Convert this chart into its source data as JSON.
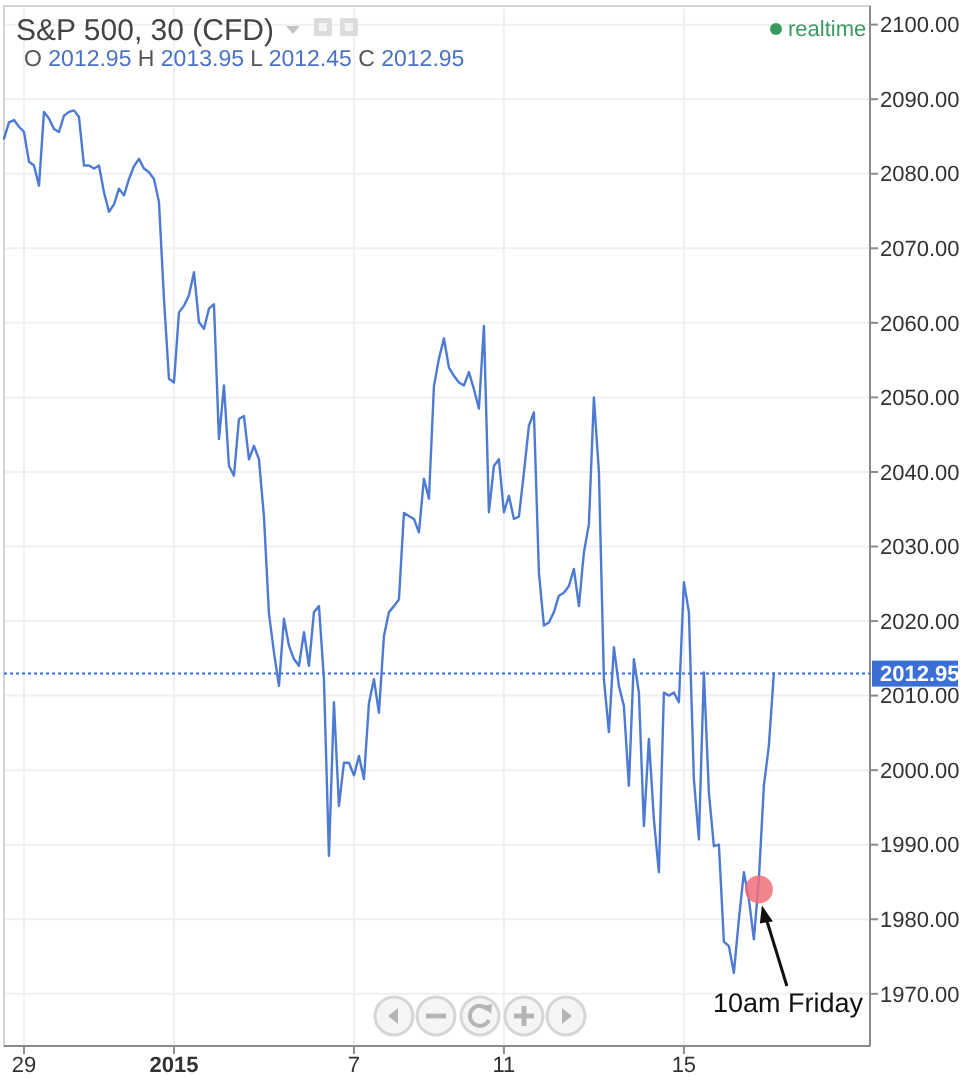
{
  "chart_data": {
    "type": "line",
    "title": "S&P 500, 30 (CFD)",
    "subtitle": "O 2012.95 H 2013.95 L 2012.45 C 2012.95",
    "annotations": [
      "realtime",
      "10am Friday"
    ],
    "categories": [
      null,
      null,
      null,
      null,
      "29",
      null,
      null,
      null,
      null,
      null,
      null,
      null,
      null,
      null,
      null,
      null,
      null,
      null,
      null,
      null,
      null,
      null,
      null,
      null,
      null,
      null,
      null,
      null,
      null,
      null,
      null,
      null,
      null,
      null,
      "2015",
      null,
      null,
      null,
      null,
      null,
      null,
      null,
      null,
      null,
      null,
      null,
      null,
      null,
      null,
      null,
      null,
      null,
      null,
      null,
      null,
      null,
      null,
      null,
      null,
      null,
      null,
      null,
      null,
      null,
      null,
      null,
      null,
      null,
      null,
      null,
      "7",
      null,
      null,
      null,
      null,
      null,
      null,
      null,
      null,
      null,
      null,
      null,
      null,
      null,
      null,
      null,
      null,
      null,
      null,
      null,
      null,
      null,
      null,
      null,
      null,
      null,
      null,
      null,
      null,
      null,
      "11",
      null,
      null,
      null,
      null,
      null,
      null,
      null,
      null,
      null,
      null,
      null,
      null,
      null,
      null,
      null,
      null,
      null,
      null,
      null,
      null,
      null,
      null,
      null,
      null,
      null,
      null,
      null,
      null,
      null,
      null,
      null,
      null,
      null,
      null,
      null,
      "15",
      null,
      null,
      null,
      null,
      null,
      null,
      null,
      null,
      null,
      null,
      null,
      null,
      null,
      null,
      null,
      null,
      null,
      null
    ],
    "series": [
      {
        "color": "#4d7bd3",
        "values": [
          2084.7,
          2086.9,
          2087.2,
          2086.3,
          2085.6,
          2081.6,
          2081.1,
          2078.4,
          2088.3,
          2087.4,
          2086.0,
          2085.6,
          2087.8,
          2088.3,
          2088.5,
          2087.6,
          2081.1,
          2081.1,
          2080.7,
          2081.1,
          2077.5,
          2074.9,
          2075.9,
          2078.0,
          2077.1,
          2079.3,
          2081.0,
          2082.0,
          2080.7,
          2080.2,
          2079.3,
          2076.2,
          2063.2,
          2052.5,
          2052.0,
          2061.4,
          2062.3,
          2063.7,
          2066.8,
          2060.1,
          2059.2,
          2061.9,
          2062.5,
          2044.4,
          2051.6,
          2040.8,
          2039.5,
          2047.1,
          2047.5,
          2041.7,
          2043.5,
          2041.7,
          2034.0,
          2021.0,
          2015.8,
          2011.3,
          2020.3,
          2016.7,
          2014.9,
          2014.0,
          2018.5,
          2014.0,
          2021.2,
          2022.0,
          2012.2,
          1988.5,
          2009.1,
          1995.2,
          2001.0,
          2001.0,
          1999.3,
          2001.9,
          1998.8,
          2009.0,
          2012.2,
          2007.7,
          2018.0,
          2021.2,
          2022.0,
          2022.9,
          2034.5,
          2034.1,
          2033.7,
          2031.9,
          2039.1,
          2036.4,
          2051.5,
          2055.2,
          2057.9,
          2054.0,
          2052.9,
          2052.0,
          2051.6,
          2053.4,
          2051.1,
          2048.5,
          2059.6,
          2034.6,
          2040.8,
          2041.7,
          2034.6,
          2036.8,
          2033.7,
          2034.0,
          2039.9,
          2046.2,
          2048.0,
          2026.5,
          2019.4,
          2019.8,
          2021.2,
          2023.4,
          2023.8,
          2024.7,
          2027.0,
          2022.0,
          2029.2,
          2033.0,
          2050.0,
          2040.0,
          2012.2,
          2005.1,
          2016.5,
          2011.3,
          2008.6,
          1997.9,
          2014.9,
          2010.4,
          1992.5,
          2004.2,
          1993.4,
          1986.3,
          2010.4,
          2010.0,
          2010.4,
          2009.1,
          2025.2,
          2021.2,
          1998.8,
          1990.7,
          2013.1,
          1997.0,
          1989.8,
          1990.0,
          1977.0,
          1976.4,
          1972.8,
          1980.0,
          1986.3,
          1982.7,
          1977.3,
          1985.4,
          1997.9,
          2003.3,
          2013.0
        ]
      },
      {
        "type": "scatter",
        "color": "#ee6f79",
        "marker": "circle",
        "values": [
          null,
          null,
          null,
          null,
          null,
          null,
          null,
          null,
          null,
          null,
          null,
          null,
          null,
          null,
          null,
          null,
          null,
          null,
          null,
          null,
          null,
          null,
          null,
          null,
          null,
          null,
          null,
          null,
          null,
          null,
          null,
          null,
          null,
          null,
          null,
          null,
          null,
          null,
          null,
          null,
          null,
          null,
          null,
          null,
          null,
          null,
          null,
          null,
          null,
          null,
          null,
          null,
          null,
          null,
          null,
          null,
          null,
          null,
          null,
          null,
          null,
          null,
          null,
          null,
          null,
          null,
          null,
          null,
          null,
          null,
          null,
          null,
          null,
          null,
          null,
          null,
          null,
          null,
          null,
          null,
          null,
          null,
          null,
          null,
          null,
          null,
          null,
          null,
          null,
          null,
          null,
          null,
          null,
          null,
          null,
          null,
          null,
          null,
          null,
          null,
          null,
          null,
          null,
          null,
          null,
          null,
          null,
          null,
          null,
          null,
          null,
          null,
          null,
          null,
          null,
          null,
          null,
          null,
          null,
          null,
          null,
          null,
          null,
          null,
          null,
          null,
          null,
          null,
          null,
          null,
          null,
          null,
          null,
          null,
          null,
          null,
          null,
          null,
          null,
          null,
          null,
          null,
          null,
          null,
          null,
          null,
          null,
          null,
          null,
          null,
          null,
          1984,
          null,
          null,
          null
        ]
      }
    ],
    "ylim": [
      1963,
      2102.5
    ],
    "yticks": [
      {
        "value": 1970,
        "label": "1970.00"
      },
      {
        "value": 1980,
        "label": "1980.00"
      },
      {
        "value": 1990,
        "label": "1990.00"
      },
      {
        "value": 2000,
        "label": "2000.00"
      },
      {
        "value": 2010,
        "label": "2010.00"
      },
      {
        "value": 2020,
        "label": "2020.00"
      },
      {
        "value": 2030,
        "label": "2030.00"
      },
      {
        "value": 2040,
        "label": "2040.00"
      },
      {
        "value": 2050,
        "label": "2050.00"
      },
      {
        "value": 2060,
        "label": "2060.00"
      },
      {
        "value": 2070,
        "label": "2070.00"
      },
      {
        "value": 2080,
        "label": "2080.00"
      },
      {
        "value": 2090,
        "label": "2090.00"
      },
      {
        "value": 2100,
        "label": "2100.00"
      }
    ],
    "grid": true,
    "ref_lines": [
      {
        "axis": "y",
        "value": 2012.95,
        "label": "2012.95",
        "color": "#3c6fd6",
        "line_style": "dotted"
      }
    ]
  }
}
